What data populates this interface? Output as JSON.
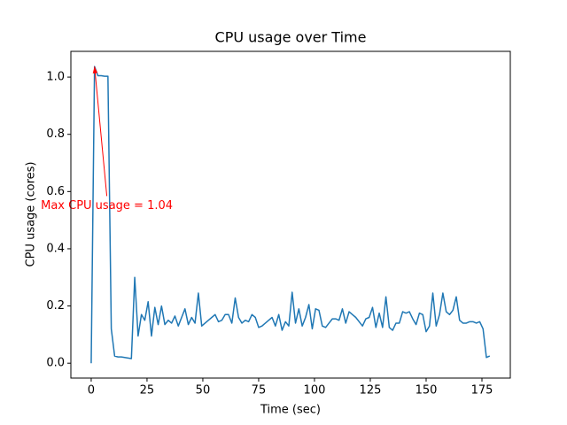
{
  "chart_data": {
    "type": "line",
    "title": "CPU usage over Time",
    "xlabel": "Time (sec)",
    "ylabel": "CPU usage (cores)",
    "x": [
      0,
      1.5,
      3,
      4.5,
      6,
      7.5,
      9,
      10.5,
      12,
      13.5,
      15,
      16.5,
      18,
      19.5,
      21,
      22.5,
      24,
      25.5,
      27,
      28.5,
      30,
      31.5,
      33,
      34.5,
      36,
      37.5,
      39,
      40.5,
      42,
      43.5,
      45,
      46.5,
      48,
      49.5,
      51,
      52.5,
      54,
      55.5,
      57,
      58.5,
      60,
      61.5,
      63,
      64.5,
      66,
      67.5,
      69,
      70.5,
      72,
      73.5,
      75,
      76.5,
      78,
      79.5,
      81,
      82.5,
      84,
      85.5,
      87,
      88.5,
      90,
      91.5,
      93,
      94.5,
      96,
      97.5,
      99,
      100.5,
      102,
      103.5,
      105,
      106.5,
      108,
      109.5,
      111,
      112.5,
      114,
      115.5,
      117,
      118.5,
      120,
      121.5,
      123,
      124.5,
      126,
      127.5,
      129,
      130.5,
      132,
      133.5,
      135,
      136.5,
      138,
      139.5,
      141,
      142.5,
      144,
      145.5,
      147,
      148.5,
      150,
      151.5,
      153,
      154.5,
      156,
      157.5,
      159,
      160.5,
      162,
      163.5,
      165,
      166.5,
      168,
      169.5,
      171,
      172.5,
      174,
      175.5,
      177,
      178.5
    ],
    "series": [
      {
        "name": "CPU usage",
        "color": "#1f77b4",
        "values": [
          0,
          1.037,
          1.005,
          1.005,
          1.003,
          1.003,
          0.12,
          0.025,
          0.022,
          0.022,
          0.02,
          0.018,
          0.016,
          0.3,
          0.095,
          0.17,
          0.15,
          0.215,
          0.095,
          0.195,
          0.135,
          0.2,
          0.135,
          0.15,
          0.14,
          0.165,
          0.13,
          0.16,
          0.19,
          0.135,
          0.16,
          0.14,
          0.245,
          0.13,
          0.14,
          0.15,
          0.16,
          0.17,
          0.145,
          0.15,
          0.17,
          0.17,
          0.14,
          0.228,
          0.16,
          0.14,
          0.15,
          0.145,
          0.17,
          0.16,
          0.125,
          0.13,
          0.14,
          0.15,
          0.16,
          0.13,
          0.17,
          0.115,
          0.145,
          0.13,
          0.248,
          0.14,
          0.19,
          0.13,
          0.16,
          0.205,
          0.12,
          0.19,
          0.185,
          0.13,
          0.125,
          0.14,
          0.155,
          0.155,
          0.15,
          0.19,
          0.14,
          0.18,
          0.17,
          0.16,
          0.145,
          0.13,
          0.155,
          0.16,
          0.195,
          0.125,
          0.175,
          0.125,
          0.232,
          0.125,
          0.115,
          0.14,
          0.14,
          0.18,
          0.175,
          0.18,
          0.155,
          0.135,
          0.175,
          0.17,
          0.11,
          0.13,
          0.245,
          0.13,
          0.17,
          0.245,
          0.18,
          0.17,
          0.185,
          0.232,
          0.15,
          0.14,
          0.14,
          0.145,
          0.145,
          0.14,
          0.145,
          0.12,
          0.02,
          0.025
        ]
      }
    ],
    "xlim": [
      -9.1,
      187.7
    ],
    "ylim": [
      -0.052,
      1.09
    ],
    "xticks": [
      0,
      25,
      50,
      75,
      100,
      125,
      150,
      175
    ],
    "yticks": [
      {
        "value": 0,
        "label": "0.0"
      },
      0.2,
      0.4,
      0.6,
      0.8,
      {
        "value": 1,
        "label": "1.0"
      }
    ],
    "annotation": {
      "text": "Max CPU usage = 1.04",
      "xy": [
        1.5,
        1.037
      ],
      "xytext": [
        7,
        0.55
      ],
      "color": "red"
    }
  }
}
